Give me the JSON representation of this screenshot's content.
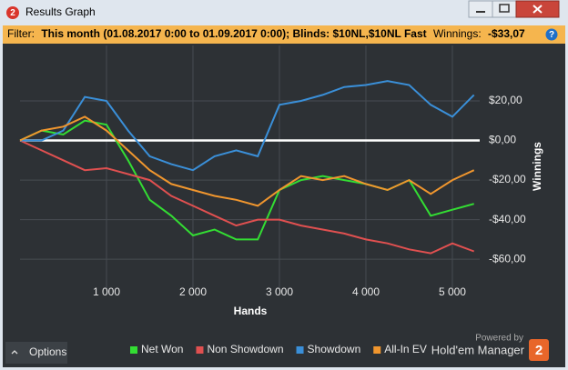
{
  "window": {
    "title": "Results Graph"
  },
  "branding": {
    "logo": "2",
    "powered_by": "Powered by",
    "product": "Hold'em Manager"
  },
  "filter": {
    "label": "Filter:",
    "text": "This month (01.08.2017 0:00 to 01.09.2017 0:00); Blinds: $10NL,$10NL Fast",
    "winnings_label": "Winnings:",
    "winnings": "-$33,07"
  },
  "options": "Options",
  "chart_data": {
    "type": "line",
    "x_label": "Hands",
    "y_label": "Winnings",
    "x": [
      0,
      250,
      500,
      750,
      1000,
      1250,
      1500,
      1750,
      2000,
      2250,
      2500,
      2750,
      3000,
      3250,
      3500,
      3750,
      4000,
      4250,
      4500,
      4750,
      5000,
      5250
    ],
    "series": [
      {
        "name": "Net Won",
        "color": "#33dd33",
        "values": [
          0,
          5,
          3,
          10,
          8,
          -10,
          -30,
          -38,
          -48,
          -45,
          -50,
          -50,
          -25,
          -20,
          -18,
          -20,
          -22,
          -25,
          -20,
          -38,
          -35,
          -32
        ]
      },
      {
        "name": "Non Showdown",
        "color": "#e05050",
        "values": [
          0,
          -5,
          -10,
          -15,
          -14,
          -17,
          -20,
          -28,
          -33,
          -38,
          -43,
          -40,
          -40,
          -43,
          -45,
          -47,
          -50,
          -52,
          -55,
          -57,
          -52,
          -56
        ]
      },
      {
        "name": "Showdown",
        "color": "#3a8fd8",
        "values": [
          0,
          0,
          5,
          22,
          20,
          5,
          -8,
          -12,
          -15,
          -8,
          -5,
          -8,
          18,
          20,
          23,
          27,
          28,
          30,
          28,
          18,
          12,
          23
        ]
      },
      {
        "name": "All-In EV",
        "color": "#f0962e",
        "values": [
          0,
          5,
          7,
          12,
          5,
          -5,
          -15,
          -22,
          -25,
          -28,
          -30,
          -33,
          -25,
          -18,
          -20,
          -18,
          -22,
          -25,
          -20,
          -27,
          -20,
          -15
        ]
      }
    ],
    "xlim": [
      0,
      5316
    ],
    "ylim": [
      -76,
      48
    ],
    "xticks": [
      {
        "value": 1000,
        "label": "1 000"
      },
      {
        "value": 2000,
        "label": "2 000"
      },
      {
        "value": 3000,
        "label": "3 000"
      },
      {
        "value": 4000,
        "label": "4 000"
      },
      {
        "value": 5000,
        "label": "5 000"
      }
    ],
    "yticks": [
      {
        "value": 20,
        "label": "$20,00"
      },
      {
        "value": 0,
        "label": "$0,00"
      },
      {
        "value": -20,
        "label": "-$20,00"
      },
      {
        "value": -40,
        "label": "-$40,00"
      },
      {
        "value": -60,
        "label": "-$60,00"
      }
    ],
    "grid": true,
    "legend": "bottom"
  }
}
